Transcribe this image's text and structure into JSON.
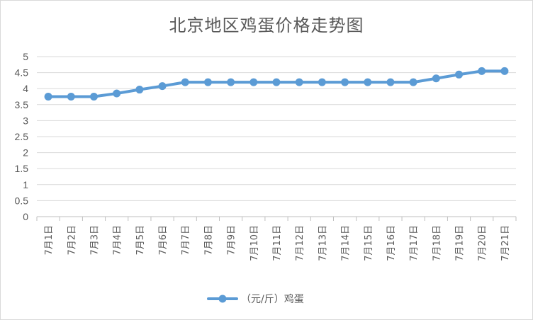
{
  "chart_data": {
    "type": "line",
    "title": "北京地区鸡蛋价格走势图",
    "categories": [
      "7月1日",
      "7月2日",
      "7月3日",
      "7月4日",
      "7月5日",
      "7月6日",
      "7月7日",
      "7月8日",
      "7月9日",
      "7月10日",
      "7月11日",
      "7月12日",
      "7月13日",
      "7月14日",
      "7月15日",
      "7月16日",
      "7月17日",
      "7月18日",
      "7月19日",
      "7月20日",
      "7月21日"
    ],
    "series": [
      {
        "name": "（元/斤）鸡蛋",
        "values": [
          3.75,
          3.75,
          3.75,
          3.85,
          3.97,
          4.08,
          4.2,
          4.2,
          4.2,
          4.2,
          4.2,
          4.2,
          4.2,
          4.2,
          4.2,
          4.2,
          4.2,
          4.32,
          4.44,
          4.55,
          4.55
        ],
        "color": "#5b9bd5"
      }
    ],
    "ylim": [
      0,
      5
    ],
    "yticks": [
      "0",
      "0.5",
      "1",
      "1.5",
      "2",
      "2.5",
      "3",
      "3.5",
      "4",
      "4.5",
      "5"
    ],
    "grid": true,
    "legend": "bottom"
  }
}
